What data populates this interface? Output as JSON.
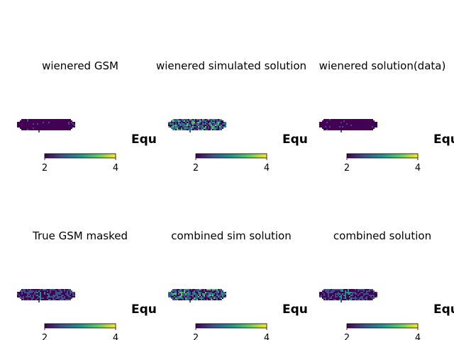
{
  "figure": {
    "layout": "2x3 grid of sky map panels (Mollweide-like projection), each with a horizontal colorbar",
    "colormap": "viridis",
    "colorbar_range": [
      2,
      4
    ],
    "colorbar_ticks": [
      2,
      4
    ],
    "equator_label": "Equ",
    "colors": {
      "low": "#440154",
      "mid_low": "#3b528b",
      "mid": "#21918c",
      "mid_high": "#5ec962",
      "high": "#fde725",
      "text": "#000000"
    }
  },
  "chart_data": [
    {
      "type": "heatmap",
      "title": "wienered GSM",
      "colorbar": {
        "min": 2,
        "max": 4,
        "ticks": [
          2,
          4
        ]
      },
      "equator_label": "Equ",
      "texture": "uniform-low"
    },
    {
      "type": "heatmap",
      "title": "wienered simulated solution",
      "colorbar": {
        "min": 2,
        "max": 4,
        "ticks": [
          2,
          4
        ]
      },
      "equator_label": "Equ",
      "texture": "noisy-mixed"
    },
    {
      "type": "heatmap",
      "title": "wienered solution(data)",
      "colorbar": {
        "min": 2,
        "max": 4,
        "ticks": [
          2,
          4
        ]
      },
      "equator_label": "Equ",
      "texture": "uniform-low"
    },
    {
      "type": "heatmap",
      "title": "True GSM masked",
      "colorbar": {
        "min": 2,
        "max": 4,
        "ticks": [
          2,
          4
        ]
      },
      "equator_label": "Equ",
      "texture": "smooth-gradient"
    },
    {
      "type": "heatmap",
      "title": "combined sim solution",
      "colorbar": {
        "min": 2,
        "max": 4,
        "ticks": [
          2,
          4
        ]
      },
      "equator_label": "Equ",
      "texture": "noisy-mixed"
    },
    {
      "type": "heatmap",
      "title": "combined solution",
      "colorbar": {
        "min": 2,
        "max": 4,
        "ticks": [
          2,
          4
        ]
      },
      "equator_label": "Equ",
      "texture": "smooth-gradient"
    }
  ]
}
